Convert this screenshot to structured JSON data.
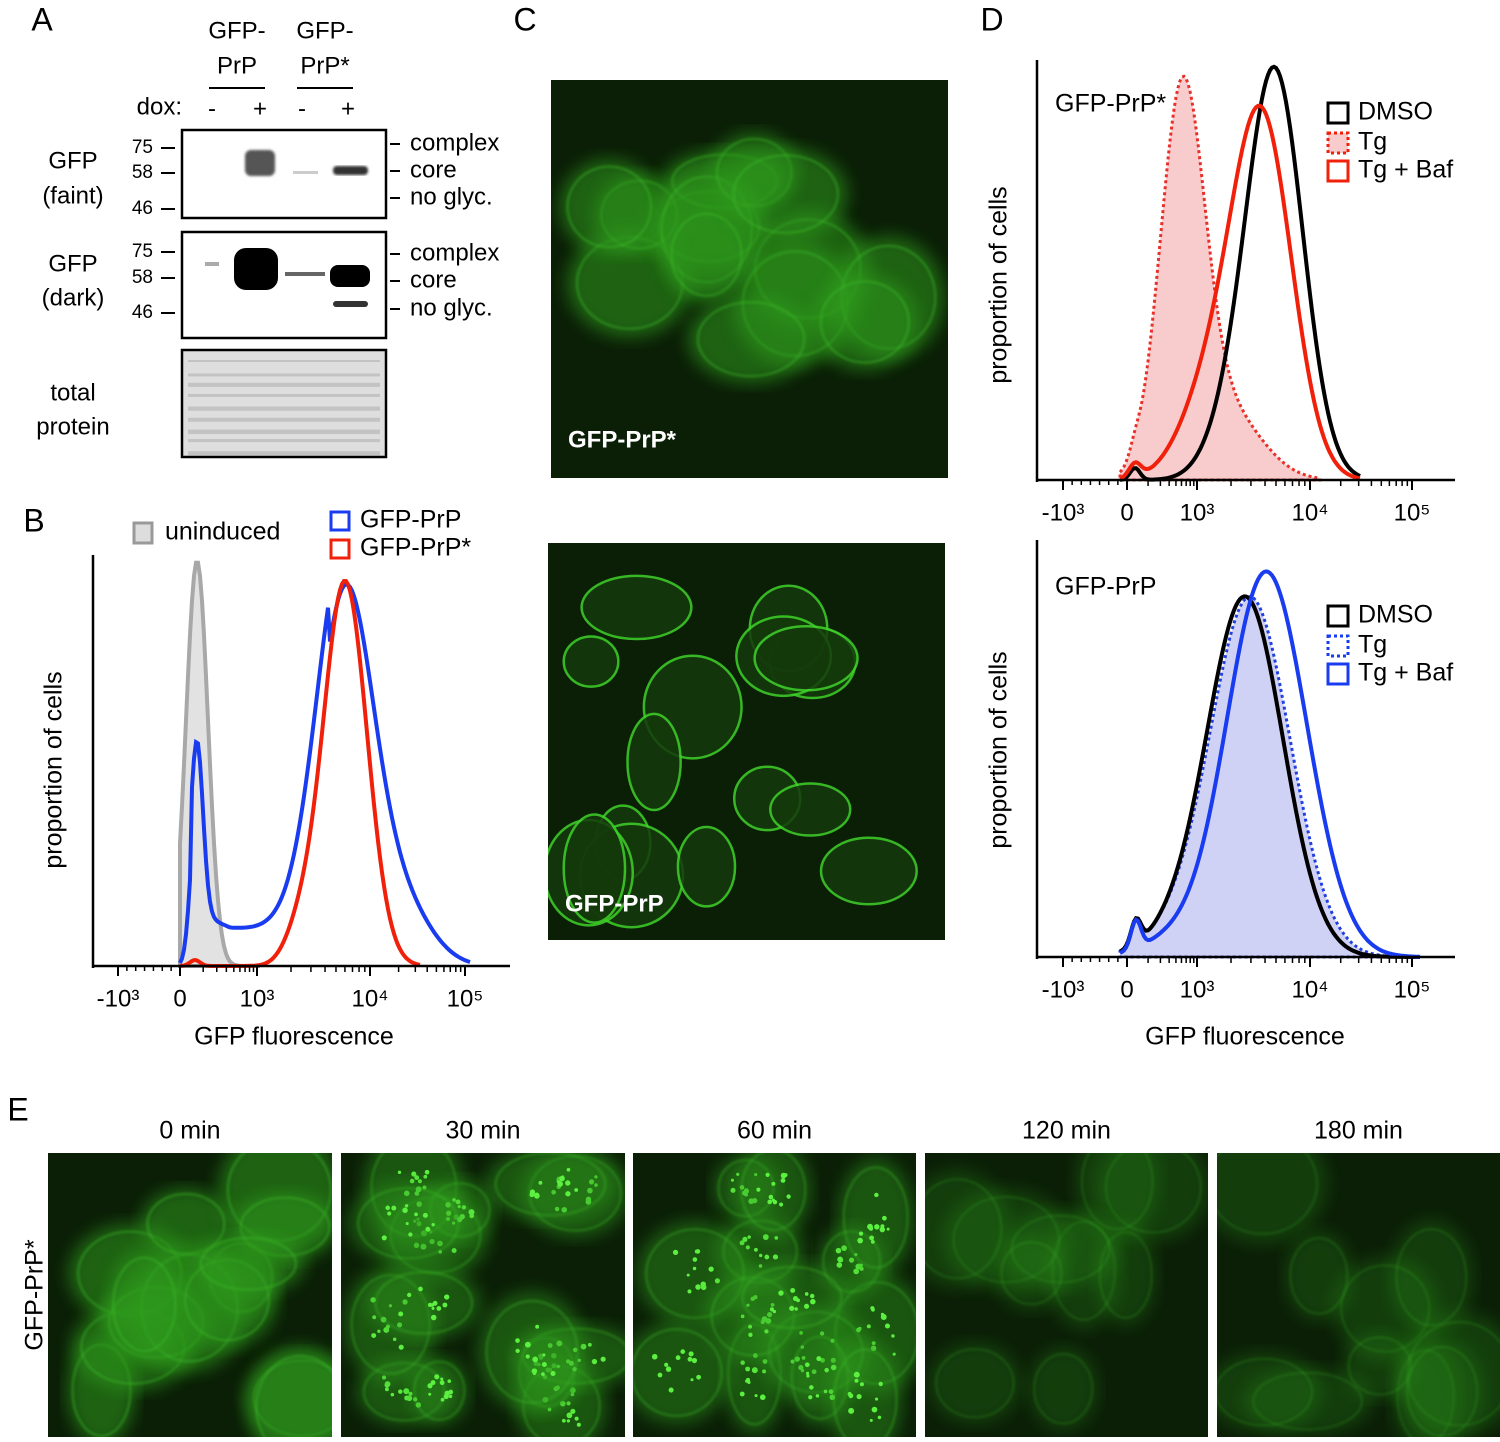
{
  "panel_a": {
    "letter": "A",
    "groups": [
      {
        "lines": [
          "GFP-",
          "PrP"
        ]
      },
      {
        "lines": [
          "GFP-",
          "PrP*"
        ]
      }
    ],
    "dox_label": "dox:",
    "lanes": [
      "-",
      "+",
      "-",
      "+"
    ],
    "blots": [
      {
        "label_lines": [
          "GFP",
          "(faint)"
        ],
        "markers": [
          "75",
          "58",
          "46"
        ],
        "bands": [
          "complex",
          "core",
          "no glyc."
        ]
      },
      {
        "label_lines": [
          "GFP",
          "(dark)"
        ],
        "markers": [
          "75",
          "58",
          "46"
        ],
        "bands": [
          "complex",
          "core",
          "no glyc."
        ]
      },
      {
        "label_lines": [
          "total",
          "protein"
        ]
      }
    ]
  },
  "panel_b": {
    "letter": "B",
    "legend": [
      "uninduced",
      "GFP-PrP",
      "GFP-PrP*"
    ],
    "y_label": "proportion of cells",
    "x_label": "GFP fluorescence",
    "xticks": [
      "-10³",
      "0",
      "10³",
      "10⁴",
      "10⁵"
    ]
  },
  "panel_c": {
    "letter": "C",
    "images": [
      "GFP-PrP*",
      "GFP-PrP"
    ]
  },
  "panel_d": {
    "letter": "D",
    "plots": [
      {
        "title": "GFP-PrP*",
        "legend": [
          "DMSO",
          "Tg",
          "Tg + Baf"
        ],
        "y_label": "proportion of cells",
        "xticks": [
          "-10³",
          "0",
          "10³",
          "10⁴",
          "10⁵"
        ]
      },
      {
        "title": "GFP-PrP",
        "legend": [
          "DMSO",
          "Tg",
          "Tg + Baf"
        ],
        "y_label": "proportion of cells",
        "xticks": [
          "-10³",
          "0",
          "10³",
          "10⁴",
          "10⁵"
        ]
      }
    ],
    "x_label": "GFP fluorescence"
  },
  "panel_e": {
    "letter": "E",
    "row_label": "GFP-PrP*",
    "times": [
      "0 min",
      "30 min",
      "60 min",
      "120 min",
      "180 min"
    ]
  }
}
